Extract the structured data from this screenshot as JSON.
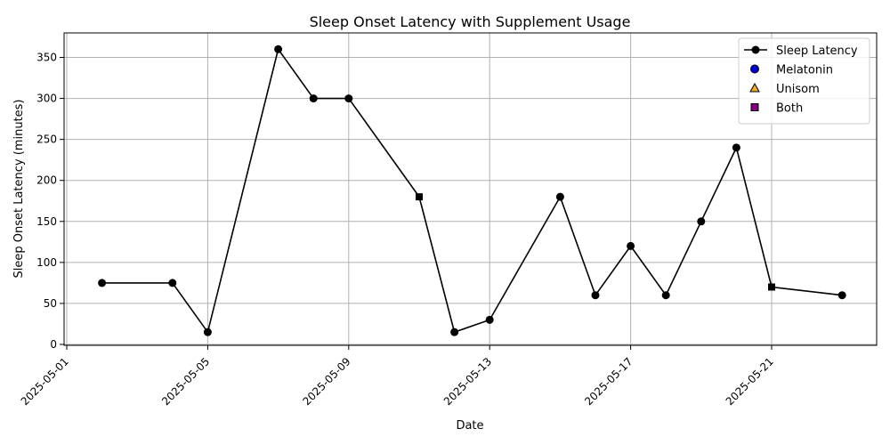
{
  "chart_data": {
    "type": "line",
    "title": "Sleep Onset Latency with Supplement Usage",
    "xlabel": "Date",
    "ylabel": "Sleep Onset Latency (minutes)",
    "xlim": [
      "2025-05-01",
      "2025-05-24"
    ],
    "ylim": [
      0,
      375
    ],
    "x_ticks": [
      "2025-05-01",
      "2025-05-05",
      "2025-05-09",
      "2025-05-13",
      "2025-05-17",
      "2025-05-21"
    ],
    "y_ticks": [
      0,
      50,
      100,
      150,
      200,
      250,
      300,
      350
    ],
    "grid": true,
    "legend_position": "top-right",
    "series": [
      {
        "name": "Sleep Latency",
        "color": "#000000",
        "points": [
          {
            "date": "2025-05-02",
            "value": 75,
            "marker": "circle"
          },
          {
            "date": "2025-05-04",
            "value": 75,
            "marker": "circle"
          },
          {
            "date": "2025-05-05",
            "value": 15,
            "marker": "circle"
          },
          {
            "date": "2025-05-07",
            "value": 360,
            "marker": "circle"
          },
          {
            "date": "2025-05-08",
            "value": 300,
            "marker": "circle"
          },
          {
            "date": "2025-05-09",
            "value": 300,
            "marker": "circle"
          },
          {
            "date": "2025-05-11",
            "value": 180,
            "marker": "square"
          },
          {
            "date": "2025-05-12",
            "value": 15,
            "marker": "circle"
          },
          {
            "date": "2025-05-13",
            "value": 30,
            "marker": "circle"
          },
          {
            "date": "2025-05-15",
            "value": 180,
            "marker": "circle"
          },
          {
            "date": "2025-05-16",
            "value": 60,
            "marker": "circle"
          },
          {
            "date": "2025-05-17",
            "value": 120,
            "marker": "circle"
          },
          {
            "date": "2025-05-18",
            "value": 60,
            "marker": "circle"
          },
          {
            "date": "2025-05-19",
            "value": 150,
            "marker": "circle"
          },
          {
            "date": "2025-05-20",
            "value": 240,
            "marker": "circle"
          },
          {
            "date": "2025-05-21",
            "value": 70,
            "marker": "square"
          },
          {
            "date": "2025-05-23",
            "value": 60,
            "marker": "circle"
          }
        ]
      }
    ],
    "legend": [
      {
        "label": "Sleep Latency",
        "kind": "line-marker",
        "color": "#000000"
      },
      {
        "label": "Melatonin",
        "kind": "circle",
        "color": "#0000cc"
      },
      {
        "label": "Unisom",
        "kind": "triangle",
        "color": "#f0a830"
      },
      {
        "label": "Both",
        "kind": "square",
        "color": "#800080"
      }
    ]
  }
}
